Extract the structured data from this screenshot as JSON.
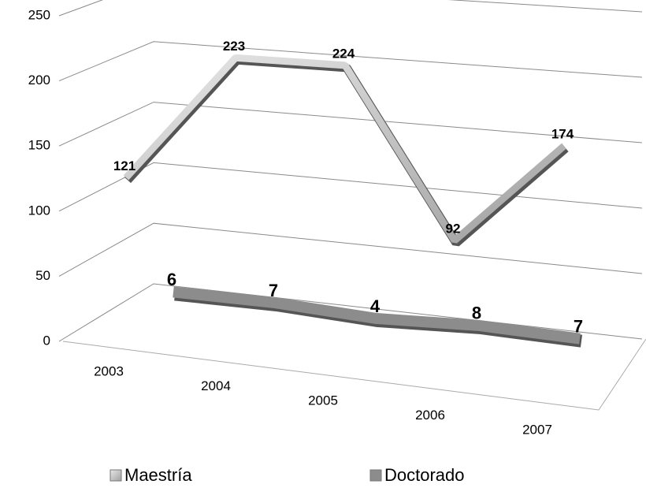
{
  "chart_data": {
    "type": "line3d",
    "categories": [
      "2003",
      "2004",
      "2005",
      "2006",
      "2007"
    ],
    "series": [
      {
        "name": "Maestría",
        "color": "#b8b8b8",
        "values": [
          121,
          223,
          224,
          92,
          174
        ]
      },
      {
        "name": "Doctorado",
        "color": "#8c8c8c",
        "values": [
          6,
          7,
          4,
          8,
          7
        ]
      }
    ],
    "ylim": [
      0,
      250
    ],
    "yticks": [
      0,
      50,
      100,
      150,
      200,
      250
    ],
    "grid": true,
    "legend": "bottom"
  }
}
